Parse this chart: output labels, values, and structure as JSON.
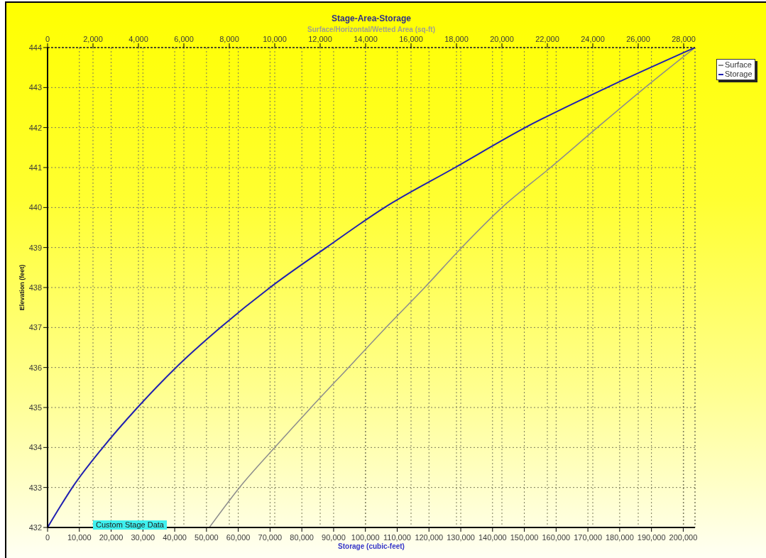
{
  "chart_data": {
    "type": "line",
    "title": "Stage-Area-Storage",
    "x2label": "Surface/Horizontal/Wetted Area (sq-ft)",
    "xlabel": "Storage (cubic-feet)",
    "ylabel": "Elevation (feet)",
    "annotations": [
      "Custom Stage Data"
    ],
    "series": [
      {
        "name": "Surface",
        "color": "#8c8c8c",
        "axis": "x2",
        "x": [
          7120,
          8450,
          10000,
          11600,
          13250,
          14900,
          16600,
          18230,
          20000,
          22140,
          24200,
          26300,
          28500
        ],
        "values": [
          432,
          433,
          434,
          435,
          436,
          437,
          438,
          439,
          440,
          441,
          442,
          443,
          444
        ]
      },
      {
        "name": "Storage",
        "color": "#2020b0",
        "x": [
          0,
          3800,
          7800,
          17400,
          28300,
          40400,
          54400,
          70000,
          87700,
          106000,
          128200,
          150300,
          176000,
          203700
        ],
        "values": [
          432,
          432.5,
          433,
          434,
          435,
          436,
          437,
          438,
          439,
          440,
          441,
          442,
          443,
          444
        ]
      }
    ],
    "xlim": [
      0,
      203700
    ],
    "xticks": [
      0,
      {
        "value": 10000,
        "label": "10,000"
      },
      {
        "value": 20000,
        "label": "20,000"
      },
      {
        "value": 30000,
        "label": "30,000"
      },
      {
        "value": 40000,
        "label": "40,000"
      },
      {
        "value": 50000,
        "label": "50,000"
      },
      {
        "value": 60000,
        "label": "60,000"
      },
      {
        "value": 70000,
        "label": "70,000"
      },
      {
        "value": 80000,
        "label": "80,000"
      },
      {
        "value": 90000,
        "label": "90,000"
      },
      {
        "value": 100000,
        "label": "100,000"
      },
      {
        "value": 110000,
        "label": "110,000"
      },
      {
        "value": 120000,
        "label": "120,000"
      },
      {
        "value": 130000,
        "label": "130,000"
      },
      {
        "value": 140000,
        "label": "140,000"
      },
      {
        "value": 150000,
        "label": "150,000"
      },
      {
        "value": 160000,
        "label": "160,000"
      },
      {
        "value": 170000,
        "label": "170,000"
      },
      {
        "value": 180000,
        "label": "180,000"
      },
      {
        "value": 190000,
        "label": "190,000"
      },
      {
        "value": 200000,
        "label": "200,000"
      }
    ],
    "x2lim": [
      0,
      28500
    ],
    "x2ticks": [
      0,
      {
        "value": 2000,
        "label": "2,000"
      },
      {
        "value": 4000,
        "label": "4,000"
      },
      {
        "value": 6000,
        "label": "6,000"
      },
      {
        "value": 8000,
        "label": "8,000"
      },
      {
        "value": 10000,
        "label": "10,000"
      },
      {
        "value": 12000,
        "label": "12,000"
      },
      {
        "value": 14000,
        "label": "14,000"
      },
      {
        "value": 16000,
        "label": "16,000"
      },
      {
        "value": 18000,
        "label": "18,000"
      },
      {
        "value": 20000,
        "label": "20,000"
      },
      {
        "value": 22000,
        "label": "22,000"
      },
      {
        "value": 24000,
        "label": "24,000"
      },
      {
        "value": 26000,
        "label": "26,000"
      },
      {
        "value": 28000,
        "label": "28,000"
      }
    ],
    "ylim": [
      432,
      444
    ],
    "yticks": [
      432,
      433,
      434,
      435,
      436,
      437,
      438,
      439,
      440,
      441,
      442,
      443,
      444
    ],
    "grid": true,
    "legend": "top right"
  }
}
